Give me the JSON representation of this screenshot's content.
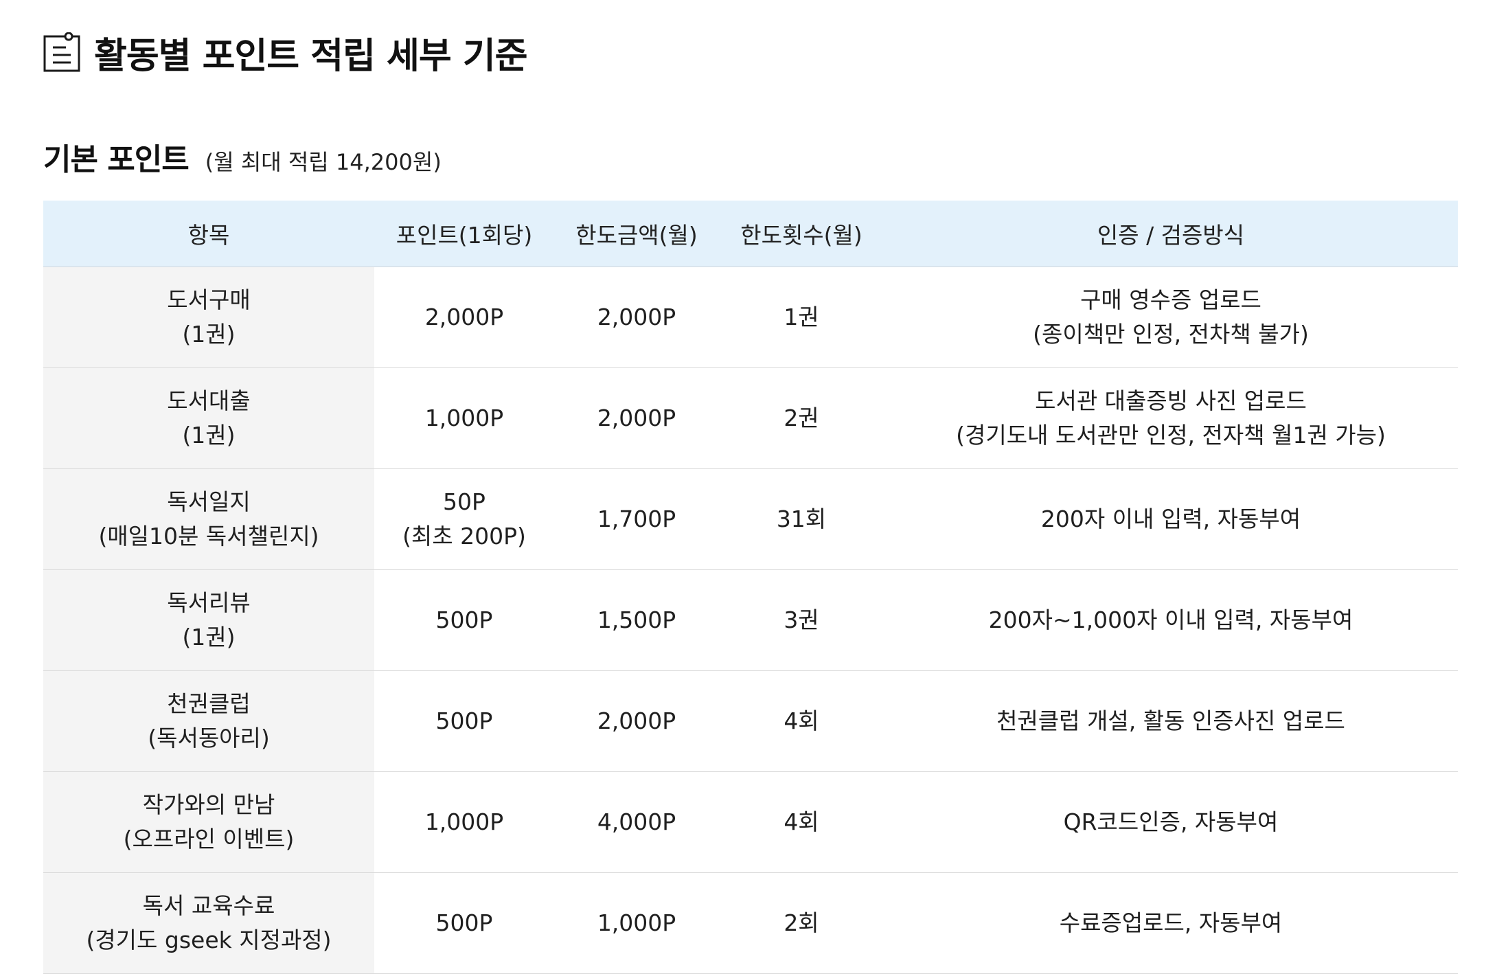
{
  "header": {
    "title": "활동별 포인트 적립 세부 기준",
    "icon": "clipboard-list-icon"
  },
  "section": {
    "title": "기본 포인트",
    "note": "(월 최대 적립 14,200원)"
  },
  "table": {
    "columns": [
      "항목",
      "포인트(1회당)",
      "한도금액(월)",
      "한도횟수(월)",
      "인증 / 검증방식"
    ],
    "rows": [
      {
        "item": [
          "도서구매",
          "(1권)"
        ],
        "points": [
          "2,000P"
        ],
        "limit_amount": "2,000P",
        "limit_count": "1권",
        "verification": [
          "구매 영수증 업로드",
          "(종이책만 인정, 전차책 불가)"
        ]
      },
      {
        "item": [
          "도서대출",
          "(1권)"
        ],
        "points": [
          "1,000P"
        ],
        "limit_amount": "2,000P",
        "limit_count": "2권",
        "verification": [
          "도서관 대출증빙 사진 업로드",
          "(경기도내 도서관만 인정, 전자책 월1권 가능)"
        ]
      },
      {
        "item": [
          "독서일지",
          "(매일10분 독서챌린지)"
        ],
        "points": [
          "50P",
          "(최초 200P)"
        ],
        "limit_amount": "1,700P",
        "limit_count": "31회",
        "verification": [
          "200자 이내 입력, 자동부여"
        ]
      },
      {
        "item": [
          "독서리뷰",
          "(1권)"
        ],
        "points": [
          "500P"
        ],
        "limit_amount": "1,500P",
        "limit_count": "3권",
        "verification": [
          "200자~1,000자 이내 입력, 자동부여"
        ]
      },
      {
        "item": [
          "천권클럽",
          "(독서동아리)"
        ],
        "points": [
          "500P"
        ],
        "limit_amount": "2,000P",
        "limit_count": "4회",
        "verification": [
          "천권클럽 개설, 활동 인증사진 업로드"
        ]
      },
      {
        "item": [
          "작가와의 만남",
          "(오프라인 이벤트)"
        ],
        "points": [
          "1,000P"
        ],
        "limit_amount": "4,000P",
        "limit_count": "4회",
        "verification": [
          "QR코드인증, 자동부여"
        ]
      },
      {
        "item": [
          "독서 교육수료",
          "(경기도 gseek 지정과정)"
        ],
        "points": [
          "500P"
        ],
        "limit_amount": "1,000P",
        "limit_count": "2회",
        "verification": [
          "수료증업로드, 자동부여"
        ]
      }
    ]
  },
  "colors": {
    "header_bg": "#e3f1fb",
    "item_col_bg": "#f4f4f4",
    "row_border": "#d9d9d9"
  }
}
